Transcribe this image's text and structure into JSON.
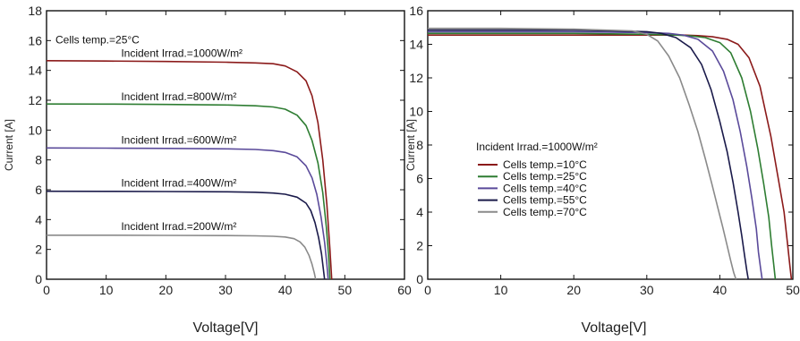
{
  "chart_data": [
    {
      "type": "line",
      "title": "",
      "xlabel": "Voltage[V]",
      "ylabel": "Current [A]",
      "xlim": [
        0,
        60
      ],
      "ylim": [
        0,
        18
      ],
      "xticks": [
        0,
        10,
        20,
        30,
        40,
        50,
        60
      ],
      "yticks": [
        0,
        2,
        4,
        6,
        8,
        10,
        12,
        14,
        16,
        18
      ],
      "grid": false,
      "annotations": [
        {
          "text": "Cells temp.=25°C",
          "x": 1.5,
          "y": 15.8
        },
        {
          "text": "Incident Irrad.=1000W/m²",
          "x": 12.5,
          "y": 14.9
        },
        {
          "text": "Incident Irrad.=800W/m²",
          "x": 12.5,
          "y": 12.0
        },
        {
          "text": "Incident Irrad.=600W/m²",
          "x": 12.5,
          "y": 9.1
        },
        {
          "text": "Incident Irrad.=400W/m²",
          "x": 12.5,
          "y": 6.2
        },
        {
          "text": "Incident Irrad.=200W/m²",
          "x": 12.5,
          "y": 3.3
        }
      ],
      "series": [
        {
          "name": "Incident Irrad.=1000W/m²",
          "color": "#8b1a1a",
          "x": [
            0,
            10,
            20,
            30,
            35,
            38,
            40,
            42,
            43.5,
            44.5,
            45.5,
            46.3,
            47,
            47.5,
            47.8
          ],
          "y": [
            14.65,
            14.63,
            14.6,
            14.55,
            14.5,
            14.45,
            14.3,
            13.9,
            13.3,
            12.3,
            10.5,
            8.0,
            5.0,
            2.0,
            0
          ]
        },
        {
          "name": "Incident Irrad.=800W/m²",
          "color": "#2e7d32",
          "x": [
            0,
            10,
            20,
            30,
            35,
            38,
            40,
            42,
            43.5,
            44.5,
            45.5,
            46.3,
            46.9,
            47.3,
            47.5
          ],
          "y": [
            11.75,
            11.74,
            11.72,
            11.68,
            11.63,
            11.55,
            11.4,
            11.0,
            10.3,
            9.3,
            7.8,
            5.8,
            3.5,
            1.5,
            0
          ]
        },
        {
          "name": "Incident Irrad.=600W/m²",
          "color": "#5a4a9a",
          "x": [
            0,
            10,
            20,
            30,
            35,
            38,
            40,
            42,
            43.5,
            44.5,
            45.3,
            46,
            46.6,
            47,
            47.2
          ],
          "y": [
            8.8,
            8.79,
            8.77,
            8.74,
            8.7,
            8.62,
            8.5,
            8.2,
            7.6,
            6.8,
            5.7,
            4.2,
            2.5,
            1.0,
            0
          ]
        },
        {
          "name": "Incident Irrad.=400W/m²",
          "color": "#1a1a4a",
          "x": [
            0,
            10,
            20,
            30,
            35,
            38,
            40,
            42,
            43.5,
            44.3,
            45,
            45.6,
            46.1,
            46.4,
            46.6
          ],
          "y": [
            5.9,
            5.89,
            5.88,
            5.86,
            5.83,
            5.78,
            5.7,
            5.5,
            5.1,
            4.6,
            3.8,
            2.8,
            1.7,
            0.7,
            0
          ]
        },
        {
          "name": "Incident Irrad.=200W/m²",
          "color": "#8a8a8a",
          "x": [
            0,
            10,
            20,
            30,
            35,
            38,
            40,
            41.5,
            42.5,
            43.3,
            44,
            44.5,
            44.9,
            45.1
          ],
          "y": [
            2.95,
            2.95,
            2.94,
            2.93,
            2.91,
            2.88,
            2.83,
            2.72,
            2.5,
            2.15,
            1.6,
            1.0,
            0.4,
            0
          ]
        }
      ]
    },
    {
      "type": "line",
      "title": "",
      "xlabel": "Voltage[V]",
      "ylabel": "Current [A]",
      "xlim": [
        0,
        50
      ],
      "ylim": [
        0,
        16
      ],
      "xticks": [
        0,
        10,
        20,
        30,
        40,
        50
      ],
      "yticks": [
        0,
        2,
        4,
        6,
        8,
        10,
        12,
        14,
        16
      ],
      "grid": false,
      "annotation": "Incident Irrad.=1000W/m²",
      "legend_position": "center-left",
      "series": [
        {
          "name": "Cells temp.=10°C",
          "color": "#8b1a1a",
          "x": [
            0,
            10,
            20,
            30,
            35,
            37,
            39,
            41,
            42.5,
            44,
            45.5,
            47,
            48,
            48.8,
            49.3,
            49.6,
            49.8
          ],
          "y": [
            14.55,
            14.55,
            14.55,
            14.55,
            14.55,
            14.52,
            14.45,
            14.3,
            14.0,
            13.2,
            11.5,
            8.5,
            6.0,
            4.0,
            2.0,
            0.8,
            0
          ]
        },
        {
          "name": "Cells temp.=25°C",
          "color": "#2e7d32",
          "x": [
            0,
            10,
            20,
            30,
            34,
            36,
            38,
            40,
            41.5,
            43,
            44.2,
            45.2,
            46,
            46.7,
            47.1,
            47.4,
            47.6
          ],
          "y": [
            14.65,
            14.65,
            14.65,
            14.6,
            14.55,
            14.5,
            14.4,
            14.1,
            13.5,
            12.0,
            10.0,
            7.8,
            5.7,
            3.7,
            2.0,
            0.8,
            0
          ]
        },
        {
          "name": "Cells temp.=40°C",
          "color": "#5a4a9a",
          "x": [
            0,
            10,
            20,
            30,
            33,
            35,
            37,
            39,
            40.5,
            41.8,
            42.8,
            43.7,
            44.4,
            45,
            45.3,
            45.6,
            45.8
          ],
          "y": [
            14.75,
            14.75,
            14.75,
            14.7,
            14.65,
            14.55,
            14.3,
            13.6,
            12.4,
            10.7,
            8.8,
            6.7,
            4.8,
            3.0,
            1.6,
            0.6,
            0
          ]
        },
        {
          "name": "Cells temp.=55°C",
          "color": "#1a1a4a",
          "x": [
            0,
            10,
            20,
            30,
            32,
            34,
            36,
            37.5,
            38.8,
            40,
            41,
            41.8,
            42.5,
            43,
            43.4,
            43.7,
            43.9
          ],
          "y": [
            14.85,
            14.85,
            14.85,
            14.75,
            14.65,
            14.4,
            13.8,
            12.8,
            11.3,
            9.4,
            7.6,
            5.8,
            4.0,
            2.6,
            1.4,
            0.5,
            0
          ]
        },
        {
          "name": "Cells temp.=70°C",
          "color": "#8a8a8a",
          "x": [
            0,
            10,
            20,
            28,
            30,
            31.5,
            33,
            34.5,
            35.8,
            37,
            38,
            38.9,
            39.7,
            40.4,
            41,
            41.5,
            41.9,
            42.2
          ],
          "y": [
            14.95,
            14.95,
            14.9,
            14.8,
            14.6,
            14.2,
            13.3,
            12.0,
            10.4,
            8.8,
            7.2,
            5.7,
            4.3,
            3.1,
            2.0,
            1.1,
            0.4,
            0
          ]
        }
      ]
    }
  ]
}
